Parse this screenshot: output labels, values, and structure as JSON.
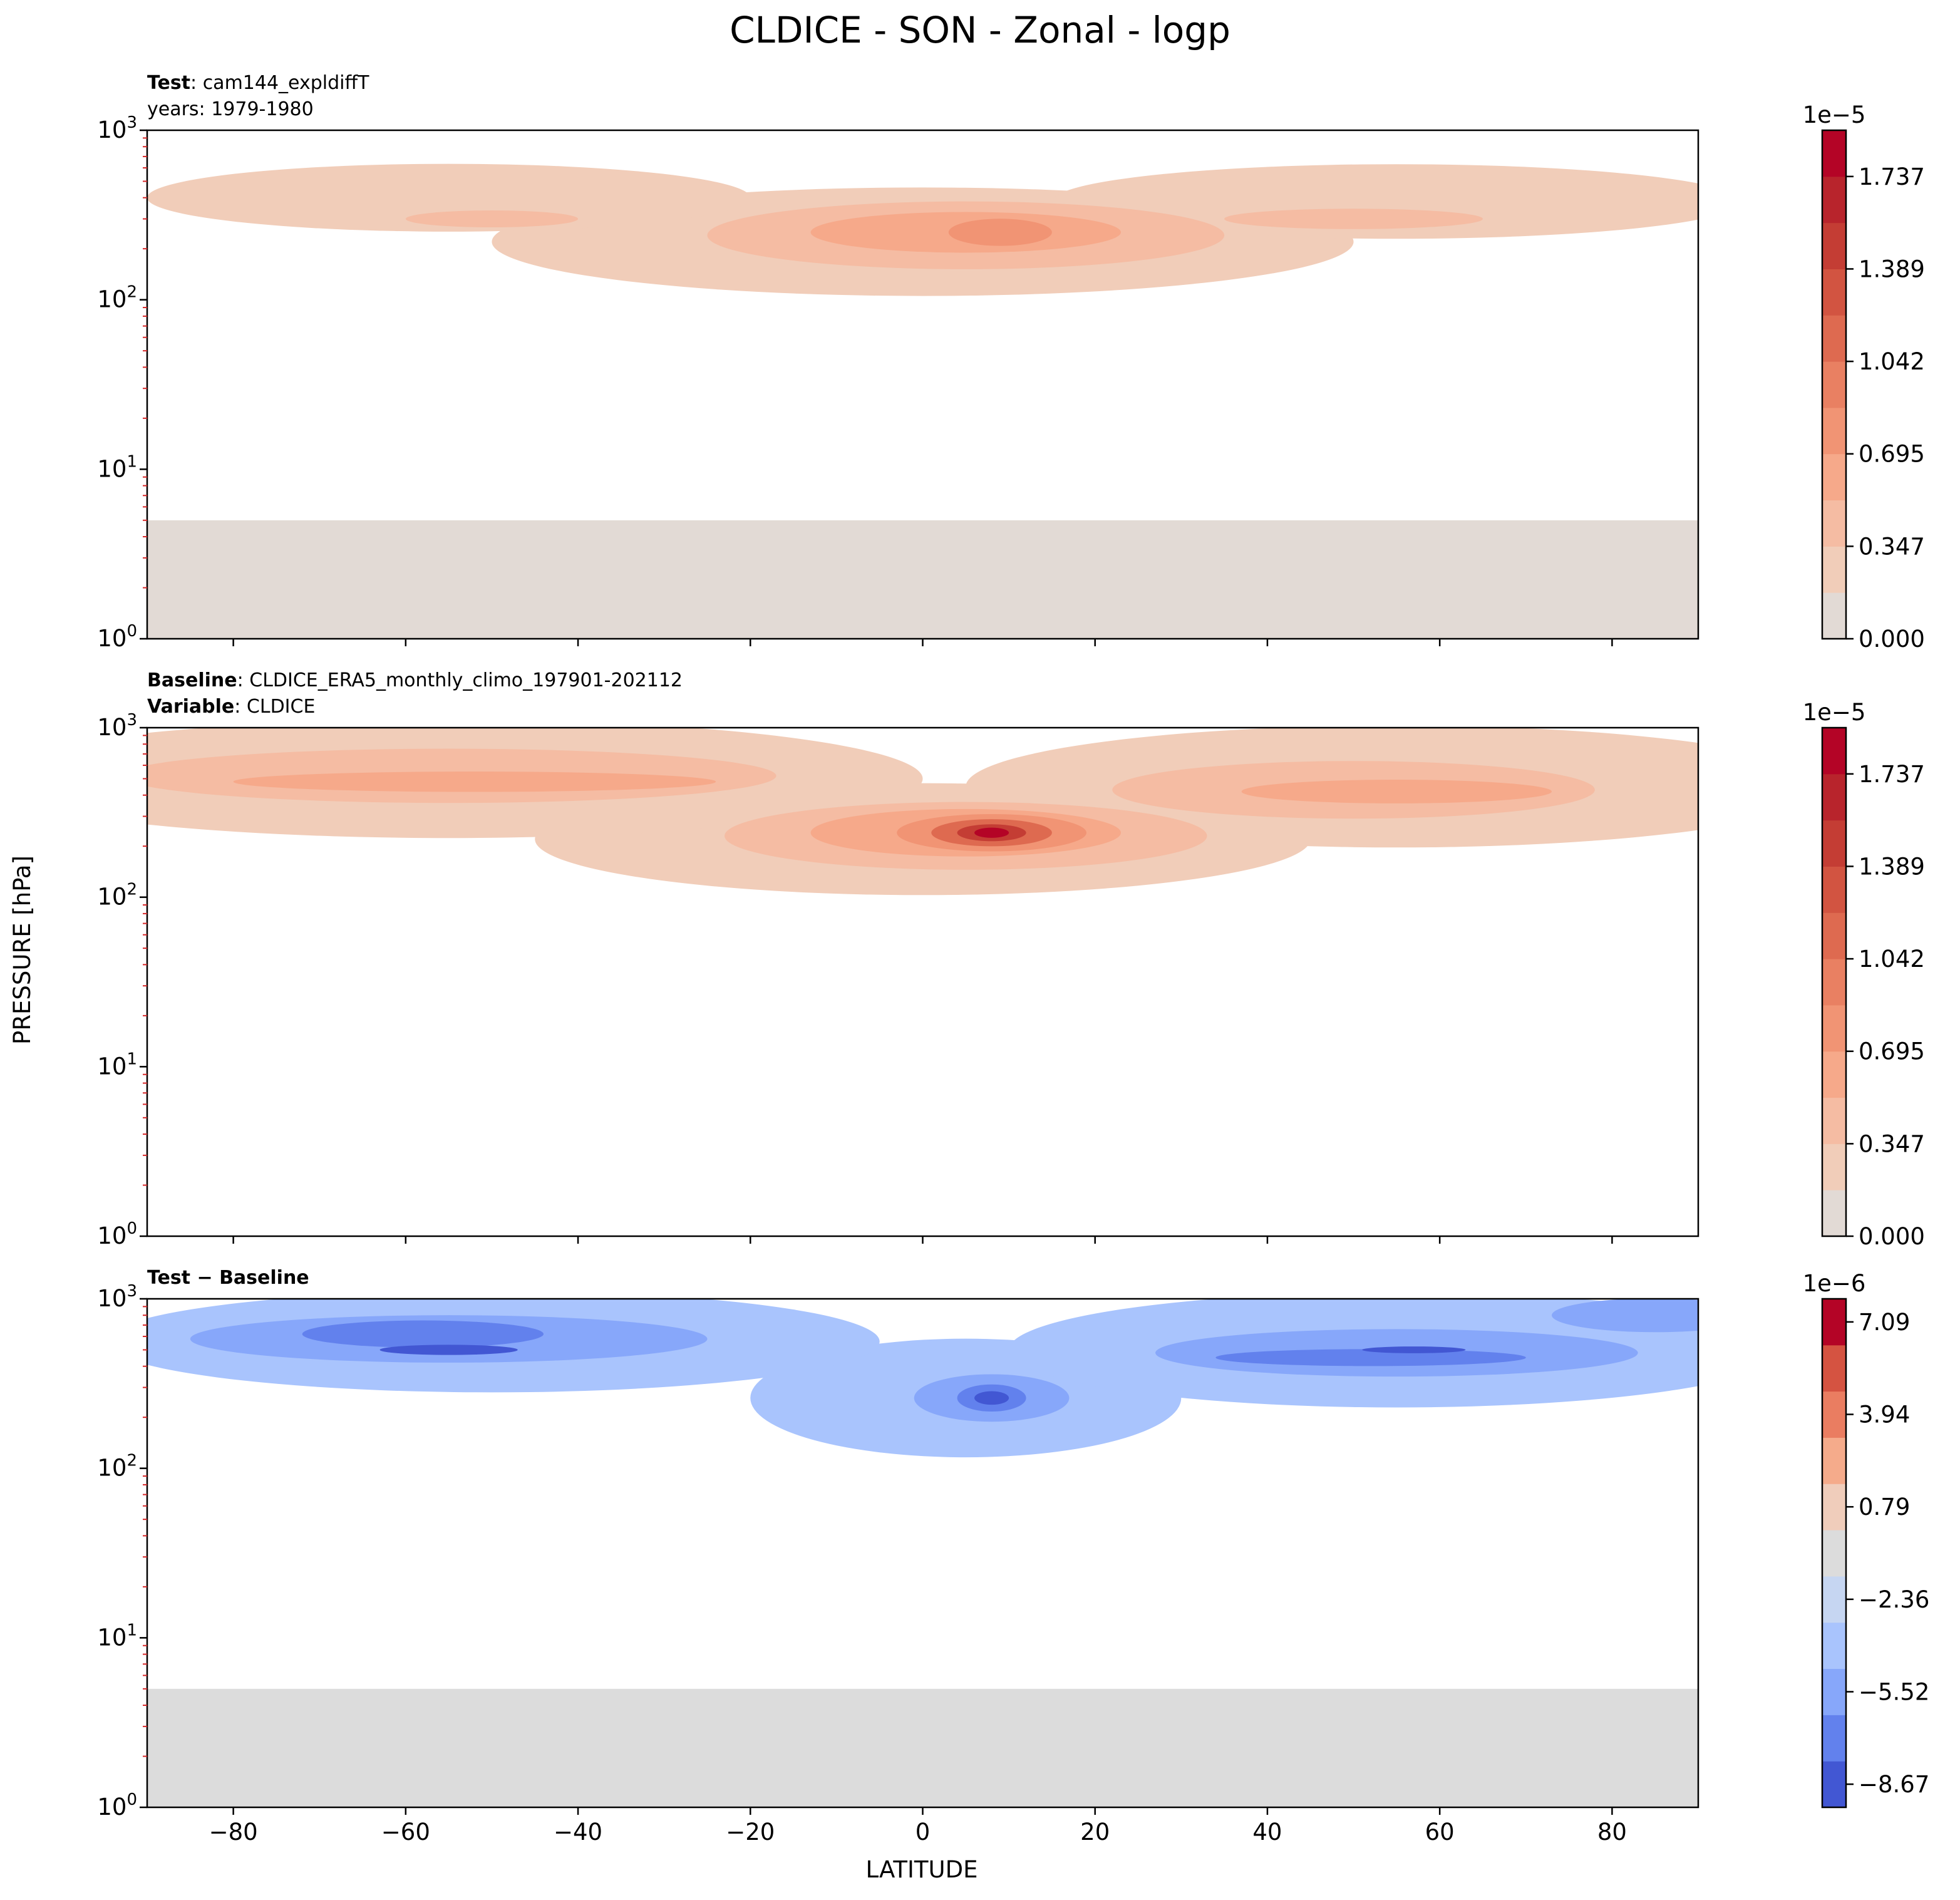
{
  "figure": {
    "title": "CLDICE - SON - Zonal - logp",
    "ylabel": "PRESSURE [hPa]",
    "xlabel": "LATITUDE"
  },
  "chart_data": [
    {
      "type": "heatmap",
      "panel": "test",
      "label_bold": "Test",
      "label_sep": ":",
      "label_value": "cam144_expldiffT",
      "label_line2": "years: 1979-1980",
      "xlim": [
        -90,
        90
      ],
      "ylim": [
        1000,
        1
      ],
      "y_scale": "log",
      "yticks": [
        {
          "value": 1,
          "base": "10",
          "exp": "0"
        },
        {
          "value": 10,
          "base": "10",
          "exp": "1"
        },
        {
          "value": 100,
          "base": "10",
          "exp": "2"
        },
        {
          "value": 1000,
          "base": "10",
          "exp": "3"
        }
      ],
      "x_tick_values": [
        -80,
        -60,
        -40,
        -20,
        0,
        20,
        40,
        60,
        80
      ],
      "x_tick_labels_visible": false,
      "data_top_pressure": 5,
      "background_color": "#e2dad5",
      "colorbar": {
        "multiplier": "1e−5",
        "ticks": [
          "0.000",
          "0.347",
          "0.695",
          "1.042",
          "1.389",
          "1.737"
        ],
        "levels": 11,
        "colors": [
          "#e2dad5",
          "#f1cdb9",
          "#f5bca3",
          "#f6a98a",
          "#f19474",
          "#e98062",
          "#de6a50",
          "#d25441",
          "#c43d34",
          "#b8242c",
          "#b40426"
        ]
      },
      "features": [
        {
          "lat": 9,
          "p": 250,
          "level": 4,
          "dlat": 6,
          "dlogp": 0.08
        },
        {
          "lat": 5,
          "p": 250,
          "level": 3,
          "dlat": 18,
          "dlogp": 0.12
        },
        {
          "lat": 5,
          "p": 240,
          "level": 2,
          "dlat": 30,
          "dlogp": 0.2
        },
        {
          "lat": 0,
          "p": 220,
          "level": 1,
          "dlat": 50,
          "dlogp": 0.32
        },
        {
          "lat": -50,
          "p": 300,
          "level": 2,
          "dlat": 10,
          "dlogp": 0.05
        },
        {
          "lat": -55,
          "p": 400,
          "level": 1,
          "dlat": 35,
          "dlogp": 0.2
        },
        {
          "lat": 50,
          "p": 300,
          "level": 2,
          "dlat": 15,
          "dlogp": 0.06
        },
        {
          "lat": 55,
          "p": 380,
          "level": 1,
          "dlat": 40,
          "dlogp": 0.22
        }
      ]
    },
    {
      "type": "heatmap",
      "panel": "baseline",
      "label_bold": "Baseline",
      "label_sep": ":",
      "label_value": "CLDICE_ERA5_monthly_climo_197901-202112",
      "label_bold_2": "Variable",
      "label_value_2": "CLDICE",
      "xlim": [
        -90,
        90
      ],
      "ylim": [
        1000,
        1
      ],
      "y_scale": "log",
      "yticks": [
        {
          "value": 1,
          "base": "10",
          "exp": "0"
        },
        {
          "value": 10,
          "base": "10",
          "exp": "1"
        },
        {
          "value": 100,
          "base": "10",
          "exp": "2"
        },
        {
          "value": 1000,
          "base": "10",
          "exp": "3"
        }
      ],
      "x_tick_values": [
        -80,
        -60,
        -40,
        -20,
        0,
        20,
        40,
        60,
        80
      ],
      "x_tick_labels_visible": false,
      "data_top_pressure": 1,
      "background_color": "#e2dad5",
      "colorbar": {
        "multiplier": "1e−5",
        "ticks": [
          "0.000",
          "0.347",
          "0.695",
          "1.042",
          "1.389",
          "1.737"
        ],
        "levels": 11,
        "colors": [
          "#e2dad5",
          "#f1cdb9",
          "#f5bca3",
          "#f6a98a",
          "#f19474",
          "#e98062",
          "#de6a50",
          "#d25441",
          "#c43d34",
          "#b8242c",
          "#b40426"
        ]
      },
      "features": [
        {
          "lat": 8,
          "p": 240,
          "level": 10,
          "dlat": 2,
          "dlogp": 0.03
        },
        {
          "lat": 8,
          "p": 240,
          "level": 8,
          "dlat": 4,
          "dlogp": 0.05
        },
        {
          "lat": 8,
          "p": 240,
          "level": 6,
          "dlat": 7,
          "dlogp": 0.08
        },
        {
          "lat": 8,
          "p": 240,
          "level": 4,
          "dlat": 11,
          "dlogp": 0.11
        },
        {
          "lat": 5,
          "p": 240,
          "level": 3,
          "dlat": 18,
          "dlogp": 0.14
        },
        {
          "lat": 5,
          "p": 230,
          "level": 2,
          "dlat": 28,
          "dlogp": 0.2
        },
        {
          "lat": 0,
          "p": 220,
          "level": 1,
          "dlat": 45,
          "dlogp": 0.33
        },
        {
          "lat": -52,
          "p": 480,
          "level": 3,
          "dlat": 28,
          "dlogp": 0.06
        },
        {
          "lat": -55,
          "p": 520,
          "level": 2,
          "dlat": 38,
          "dlogp": 0.16
        },
        {
          "lat": -55,
          "p": 500,
          "level": 1,
          "dlat": 55,
          "dlogp": 0.35
        },
        {
          "lat": 55,
          "p": 420,
          "level": 3,
          "dlat": 18,
          "dlogp": 0.07
        },
        {
          "lat": 50,
          "p": 430,
          "level": 2,
          "dlat": 28,
          "dlogp": 0.17
        },
        {
          "lat": 55,
          "p": 450,
          "level": 1,
          "dlat": 50,
          "dlogp": 0.36
        }
      ]
    },
    {
      "type": "heatmap",
      "panel": "difference",
      "label_bold": "Test",
      "label_sep": "−",
      "label_bold_b": "Baseline",
      "xlim": [
        -90,
        90
      ],
      "ylim": [
        1000,
        1
      ],
      "y_scale": "log",
      "yticks": [
        {
          "value": 1,
          "base": "10",
          "exp": "0"
        },
        {
          "value": 10,
          "base": "10",
          "exp": "1"
        },
        {
          "value": 100,
          "base": "10",
          "exp": "2"
        },
        {
          "value": 1000,
          "base": "10",
          "exp": "3"
        }
      ],
      "x_tick_values": [
        -80,
        -60,
        -40,
        -20,
        0,
        20,
        40,
        60,
        80
      ],
      "x_tick_labels_visible": true,
      "data_top_pressure": 5,
      "background_color": "#dcdcdc",
      "colorbar": {
        "multiplier": "1e−6",
        "ticks": [
          "−8.67",
          "−5.52",
          "−2.36",
          "0.79",
          "3.94",
          "7.09"
        ],
        "levels": 11,
        "colors": [
          "#4257d3",
          "#6281ed",
          "#87a7fa",
          "#a9c4fd",
          "#c6d6f2",
          "#dcdcdc",
          "#f0cdbb",
          "#f5ab8b",
          "#ea7d61",
          "#d55341",
          "#b40426"
        ]
      },
      "features": [
        {
          "lat": 8,
          "p": 260,
          "level": 0,
          "dlat": 2,
          "dlogp": 0.04
        },
        {
          "lat": 8,
          "p": 260,
          "level": 1,
          "dlat": 4,
          "dlogp": 0.08
        },
        {
          "lat": 8,
          "p": 260,
          "level": 2,
          "dlat": 9,
          "dlogp": 0.14
        },
        {
          "lat": 5,
          "p": 260,
          "level": 3,
          "dlat": 25,
          "dlogp": 0.35
        },
        {
          "lat": -55,
          "p": 500,
          "level": 0,
          "dlat": 8,
          "dlogp": 0.03
        },
        {
          "lat": -58,
          "p": 620,
          "level": 1,
          "dlat": 14,
          "dlogp": 0.08
        },
        {
          "lat": -55,
          "p": 580,
          "level": 2,
          "dlat": 30,
          "dlogp": 0.14
        },
        {
          "lat": -50,
          "p": 560,
          "level": 3,
          "dlat": 45,
          "dlogp": 0.3
        },
        {
          "lat": 57,
          "p": 500,
          "level": 0,
          "dlat": 6,
          "dlogp": 0.02
        },
        {
          "lat": 52,
          "p": 450,
          "level": 1,
          "dlat": 18,
          "dlogp": 0.05
        },
        {
          "lat": 55,
          "p": 480,
          "level": 2,
          "dlat": 28,
          "dlogp": 0.14
        },
        {
          "lat": 55,
          "p": 500,
          "level": 3,
          "dlat": 45,
          "dlogp": 0.34
        },
        {
          "lat": 85,
          "p": 800,
          "level": 2,
          "dlat": 12,
          "dlogp": 0.1
        }
      ]
    }
  ]
}
